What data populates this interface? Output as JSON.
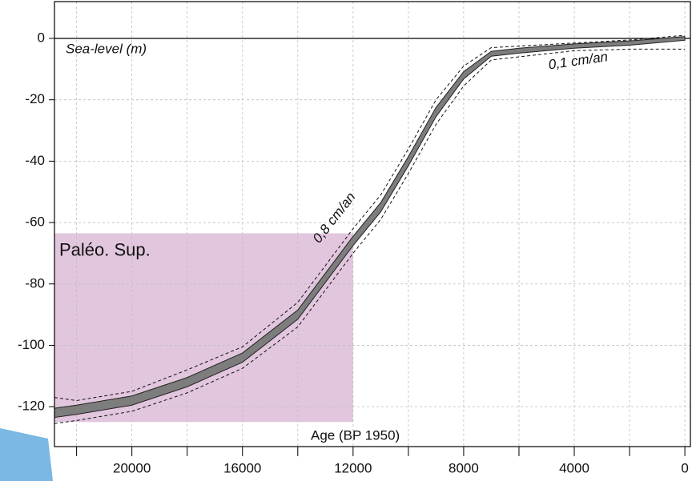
{
  "chart_data": {
    "type": "sea-level",
    "y_label": "Sea-level (m)",
    "x_label": "Age (BP 1950)",
    "annotations": [
      "0,1 cm/an",
      "0,8 cm/an"
    ],
    "period": {
      "label": "Paléo. Sup.",
      "x": [
        22800,
        12000
      ],
      "y": [
        -63.5,
        -125
      ],
      "color": "#e2c6de",
      "label_color": "#7a4b9c"
    },
    "x": [
      22800,
      22000,
      20000,
      18000,
      16000,
      14000,
      13000,
      12000,
      11000,
      10000,
      9000,
      8000,
      7000,
      6000,
      4000,
      2000,
      0
    ],
    "band": {
      "upper": [
        -120.5,
        -119.5,
        -116.5,
        -110.5,
        -102.5,
        -88.5,
        -76.5,
        -64.5,
        -53.5,
        -38.5,
        -22.5,
        -10.8,
        -4.2,
        -3.2,
        -1.8,
        -0.8,
        0.6
      ],
      "lower": [
        -123.5,
        -122.5,
        -119.5,
        -113.5,
        -105.5,
        -91.5,
        -79.5,
        -67.5,
        -56.5,
        -41.5,
        -25.5,
        -13.2,
        -5.8,
        -4.8,
        -3.2,
        -2.2,
        -0.6
      ],
      "color": "#7d7d7d"
    },
    "envelope": {
      "upper": [
        -117,
        -118,
        -115,
        -108,
        -100.5,
        -86,
        -74,
        -62,
        -51,
        -36,
        -20,
        -9,
        -3,
        -2.5,
        -1.5,
        -0.5,
        1
      ],
      "lower": [
        -125.5,
        -124.5,
        -121.5,
        -115.5,
        -107.5,
        -94,
        -82,
        -70,
        -59,
        -44,
        -28,
        -15.5,
        -7,
        -6,
        -4,
        -3.5,
        -3.5
      ]
    },
    "xlim": [
      22800,
      -200
    ],
    "ylim": [
      -133,
      12
    ],
    "xticks": [
      20000,
      16000,
      12000,
      8000,
      4000,
      0
    ],
    "x_grid": [
      22000,
      20000,
      18000,
      16000,
      14000,
      12000,
      10000,
      8000,
      6000,
      4000,
      2000,
      0
    ],
    "yticks": [
      0,
      -20,
      -40,
      -60,
      -80,
      -100,
      -120
    ],
    "grid": true,
    "zero_line": true
  }
}
